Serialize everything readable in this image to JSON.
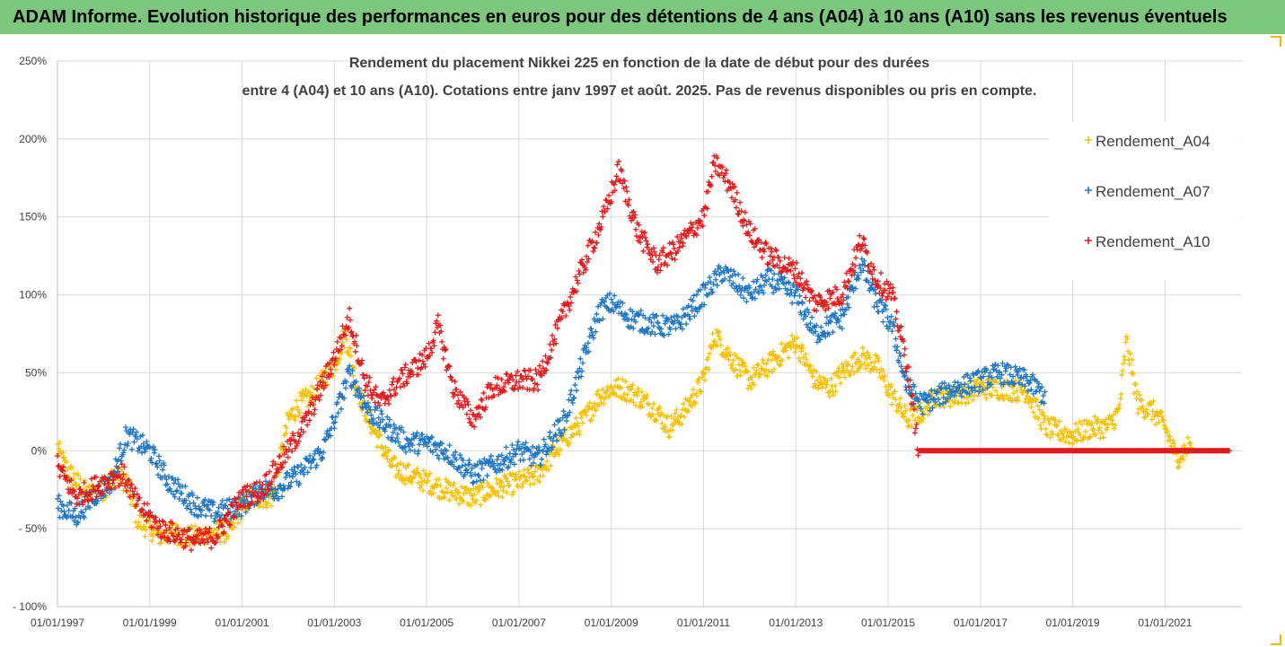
{
  "banner": {
    "title": "ADAM Informe. Evolution historique des performances en euros pour des détentions de 4 ans (A04) à 10 ans (A10) sans les revenus éventuels"
  },
  "chart_data": {
    "type": "scatter",
    "title_line1": "Rendement du placement Nikkei 225 en fonction de la date de début pour des durées",
    "title_line2": "entre 4 (A04) et 10 ans (A10). Cotations entre janv 1997 et août. 2025. Pas de revenus disponibles ou pris en compte.",
    "xlabel": "",
    "ylabel": "",
    "x_range": [
      "1997-01-01",
      "2022-09-01"
    ],
    "y_range": [
      -100,
      250
    ],
    "y_ticks": [
      250,
      200,
      150,
      100,
      50,
      0,
      -50,
      -100
    ],
    "y_tick_labels": [
      "250%",
      "200%",
      "150%",
      "100%",
      "50%",
      "0%",
      "- 50%",
      "- 100%"
    ],
    "x_tick_labels": [
      "01/01/1997",
      "01/01/1999",
      "01/01/2001",
      "01/01/2003",
      "01/01/2005",
      "01/01/2007",
      "01/01/2009",
      "01/01/2011",
      "01/01/2013",
      "01/01/2015",
      "01/01/2017",
      "01/01/2019",
      "01/01/2021"
    ],
    "grid": true,
    "legend_position": "top-right",
    "marker": "+",
    "series": [
      {
        "name": "Rendement_A04",
        "color": "#f5c000",
        "points": [
          [
            "1997-01-01",
            2
          ],
          [
            "1997-03-01",
            -10
          ],
          [
            "1997-06-01",
            -20
          ],
          [
            "1997-09-01",
            -28
          ],
          [
            "1998-01-01",
            -25
          ],
          [
            "1998-04-01",
            -15
          ],
          [
            "1998-07-01",
            -20
          ],
          [
            "1998-10-01",
            -45
          ],
          [
            "1999-01-01",
            -50
          ],
          [
            "1999-04-01",
            -55
          ],
          [
            "1999-07-01",
            -52
          ],
          [
            "1999-10-01",
            -55
          ],
          [
            "2000-01-01",
            -55
          ],
          [
            "2000-06-01",
            -52
          ],
          [
            "2000-10-01",
            -52
          ],
          [
            "2001-01-01",
            -35
          ],
          [
            "2001-04-01",
            -30
          ],
          [
            "2001-09-01",
            -30
          ],
          [
            "2002-01-01",
            20
          ],
          [
            "2002-04-01",
            30
          ],
          [
            "2002-07-01",
            35
          ],
          [
            "2002-10-01",
            45
          ],
          [
            "2003-01-01",
            55
          ],
          [
            "2003-04-01",
            75
          ],
          [
            "2003-07-01",
            40
          ],
          [
            "2003-10-01",
            20
          ],
          [
            "2004-01-01",
            5
          ],
          [
            "2004-04-01",
            -10
          ],
          [
            "2004-08-01",
            -15
          ],
          [
            "2005-01-01",
            -20
          ],
          [
            "2005-06-01",
            -25
          ],
          [
            "2006-01-01",
            -30
          ],
          [
            "2006-06-01",
            -25
          ],
          [
            "2007-01-01",
            -20
          ],
          [
            "2007-06-01",
            -15
          ],
          [
            "2007-12-01",
            5
          ],
          [
            "2008-06-01",
            20
          ],
          [
            "2008-10-01",
            35
          ],
          [
            "2009-01-01",
            40
          ],
          [
            "2009-04-01",
            40
          ],
          [
            "2009-08-01",
            35
          ],
          [
            "2010-01-01",
            25
          ],
          [
            "2010-04-01",
            15
          ],
          [
            "2010-08-01",
            25
          ],
          [
            "2011-01-01",
            45
          ],
          [
            "2011-04-01",
            75
          ],
          [
            "2011-08-01",
            60
          ],
          [
            "2012-01-01",
            45
          ],
          [
            "2012-06-01",
            55
          ],
          [
            "2013-01-01",
            70
          ],
          [
            "2013-06-01",
            45
          ],
          [
            "2013-10-01",
            40
          ],
          [
            "2014-01-01",
            50
          ],
          [
            "2014-06-01",
            60
          ],
          [
            "2014-10-01",
            55
          ],
          [
            "2015-01-01",
            40
          ],
          [
            "2015-06-01",
            20
          ],
          [
            "2015-10-01",
            25
          ],
          [
            "2016-01-01",
            35
          ],
          [
            "2016-06-01",
            35
          ],
          [
            "2017-01-01",
            40
          ],
          [
            "2017-06-01",
            40
          ],
          [
            "2018-01-01",
            38
          ],
          [
            "2018-06-01",
            15
          ],
          [
            "2019-01-01",
            10
          ],
          [
            "2019-06-01",
            15
          ],
          [
            "2019-10-01",
            15
          ],
          [
            "2020-01-01",
            25
          ],
          [
            "2020-03-01",
            70
          ],
          [
            "2020-06-01",
            30
          ],
          [
            "2020-10-01",
            25
          ],
          [
            "2021-01-01",
            15
          ],
          [
            "2021-04-01",
            -5
          ],
          [
            "2021-08-01",
            5
          ]
        ]
      },
      {
        "name": "Rendement_A07",
        "color": "#1f77c4",
        "points": [
          [
            "1997-01-01",
            -35
          ],
          [
            "1997-06-01",
            -42
          ],
          [
            "1997-10-01",
            -30
          ],
          [
            "1998-03-01",
            -20
          ],
          [
            "1998-07-01",
            10
          ],
          [
            "1998-10-01",
            5
          ],
          [
            "1999-01-01",
            0
          ],
          [
            "1999-06-01",
            -20
          ],
          [
            "2000-01-01",
            -35
          ],
          [
            "2000-06-01",
            -40
          ],
          [
            "2001-01-01",
            -35
          ],
          [
            "2001-06-01",
            -25
          ],
          [
            "2001-10-01",
            -25
          ],
          [
            "2002-04-01",
            -15
          ],
          [
            "2002-10-01",
            0
          ],
          [
            "2003-01-01",
            20
          ],
          [
            "2003-05-01",
            50
          ],
          [
            "2003-10-01",
            25
          ],
          [
            "2004-03-01",
            15
          ],
          [
            "2004-08-01",
            5
          ],
          [
            "2005-01-01",
            5
          ],
          [
            "2005-06-01",
            0
          ],
          [
            "2006-01-01",
            -15
          ],
          [
            "2006-06-01",
            -10
          ],
          [
            "2007-01-01",
            0
          ],
          [
            "2007-06-01",
            -5
          ],
          [
            "2008-01-01",
            20
          ],
          [
            "2008-06-01",
            60
          ],
          [
            "2008-10-01",
            90
          ],
          [
            "2009-01-01",
            95
          ],
          [
            "2009-06-01",
            85
          ],
          [
            "2010-01-01",
            80
          ],
          [
            "2010-06-01",
            80
          ],
          [
            "2011-01-01",
            100
          ],
          [
            "2011-06-01",
            115
          ],
          [
            "2012-01-01",
            100
          ],
          [
            "2012-06-01",
            110
          ],
          [
            "2013-01-01",
            100
          ],
          [
            "2013-06-01",
            75
          ],
          [
            "2014-01-01",
            85
          ],
          [
            "2014-06-01",
            120
          ],
          [
            "2014-10-01",
            95
          ],
          [
            "2015-02-01",
            80
          ],
          [
            "2015-06-01",
            40
          ],
          [
            "2015-10-01",
            30
          ],
          [
            "2016-06-01",
            40
          ],
          [
            "2017-01-01",
            45
          ],
          [
            "2017-06-01",
            50
          ],
          [
            "2018-01-01",
            45
          ],
          [
            "2018-06-01",
            35
          ]
        ]
      },
      {
        "name": "Rendement_A10",
        "color": "#e31a1c",
        "points": [
          [
            "1997-01-01",
            -10
          ],
          [
            "1997-06-01",
            -30
          ],
          [
            "1998-01-01",
            -20
          ],
          [
            "1998-06-01",
            -15
          ],
          [
            "1998-10-01",
            -35
          ],
          [
            "1999-04-01",
            -50
          ],
          [
            "2000-01-01",
            -58
          ],
          [
            "2000-06-01",
            -55
          ],
          [
            "2001-01-01",
            -30
          ],
          [
            "2001-06-01",
            -25
          ],
          [
            "2002-01-01",
            0
          ],
          [
            "2002-06-01",
            20
          ],
          [
            "2003-01-01",
            60
          ],
          [
            "2003-05-01",
            85
          ],
          [
            "2003-09-01",
            45
          ],
          [
            "2004-01-01",
            30
          ],
          [
            "2004-06-01",
            45
          ],
          [
            "2005-01-01",
            60
          ],
          [
            "2005-04-01",
            80
          ],
          [
            "2005-08-01",
            40
          ],
          [
            "2006-01-01",
            20
          ],
          [
            "2006-06-01",
            40
          ],
          [
            "2007-01-01",
            45
          ],
          [
            "2007-06-01",
            45
          ],
          [
            "2008-01-01",
            90
          ],
          [
            "2008-06-01",
            120
          ],
          [
            "2008-11-01",
            150
          ],
          [
            "2009-03-01",
            180
          ],
          [
            "2009-08-01",
            140
          ],
          [
            "2010-01-01",
            120
          ],
          [
            "2010-06-01",
            130
          ],
          [
            "2011-01-01",
            150
          ],
          [
            "2011-04-01",
            185
          ],
          [
            "2011-08-01",
            170
          ],
          [
            "2012-01-01",
            140
          ],
          [
            "2012-06-01",
            125
          ],
          [
            "2013-01-01",
            115
          ],
          [
            "2013-06-01",
            95
          ],
          [
            "2014-01-01",
            100
          ],
          [
            "2014-06-01",
            135
          ],
          [
            "2014-10-01",
            110
          ],
          [
            "2015-02-01",
            100
          ],
          [
            "2015-06-01",
            55
          ],
          [
            "2015-09-01",
            0
          ],
          [
            "2017-01-01",
            0
          ],
          [
            "2019-01-01",
            0
          ],
          [
            "2021-01-01",
            0
          ],
          [
            "2022-06-01",
            0
          ]
        ]
      }
    ]
  }
}
